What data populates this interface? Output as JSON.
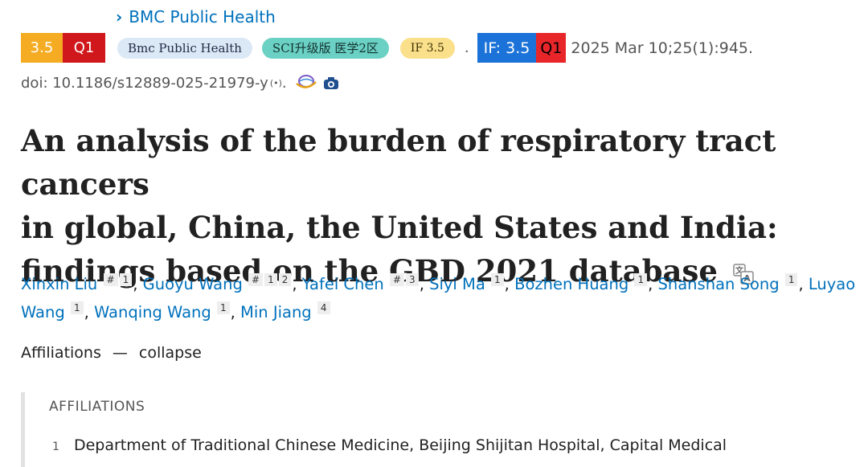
{
  "journal": {
    "link_text": "BMC Public Health"
  },
  "meta": {
    "if_value": "3.5",
    "quartile": "Q1",
    "journal_pill": "Bmc Public Health",
    "sci_pill": "SCI升级版 医学2区",
    "if_pill": "IF 3.5",
    "separator": ".",
    "if_badge": "IF: 3.5",
    "q_badge": "Q1",
    "citation": "2025 Mar 10;25(1):945."
  },
  "doi": {
    "text": "doi: 10.1186/s12889-025-21979-y",
    "signal_glyph": "(•)",
    "trailing": "."
  },
  "title": {
    "line1": "An analysis of the burden of respiratory tract cancers",
    "line2": "in global, China, the United States and India:",
    "line3": "findings based on the GBD 2021 database"
  },
  "authors": [
    {
      "name": "Xinxin Liu",
      "sups": [
        "#",
        "1"
      ]
    },
    {
      "name": "Guoyu Wang",
      "sups": [
        "#",
        "1",
        "2"
      ]
    },
    {
      "name": "Yafei Chen",
      "sups": [
        "#",
        "3"
      ]
    },
    {
      "name": "Siyi Ma",
      "sups": [
        "1"
      ]
    },
    {
      "name": "Bozhen Huang",
      "sups": [
        "1"
      ]
    },
    {
      "name": "Shanshan Song",
      "sups": [
        "1"
      ]
    },
    {
      "name": "Luyao Wang",
      "sups": [
        "1"
      ]
    },
    {
      "name": "Wanqing Wang",
      "sups": [
        "1"
      ]
    },
    {
      "name": "Min Jiang",
      "sups": [
        "4"
      ]
    }
  ],
  "affiliations": {
    "label": "Affiliations",
    "dash": "—",
    "toggle": "collapse",
    "heading": "AFFILIATIONS",
    "items": [
      {
        "num": "1",
        "text": "Department of Traditional Chinese Medicine, Beijing Shijitan Hospital, Capital Medical"
      }
    ]
  },
  "icons": [
    "chevron-right-icon",
    "signal-icon",
    "globe-icon",
    "camera-icon",
    "translate-icon"
  ],
  "colors": {
    "link": "#0071bc",
    "if_orange": "#f5ac22",
    "q_red": "#d0171b",
    "if_blue": "#1b72d8"
  }
}
